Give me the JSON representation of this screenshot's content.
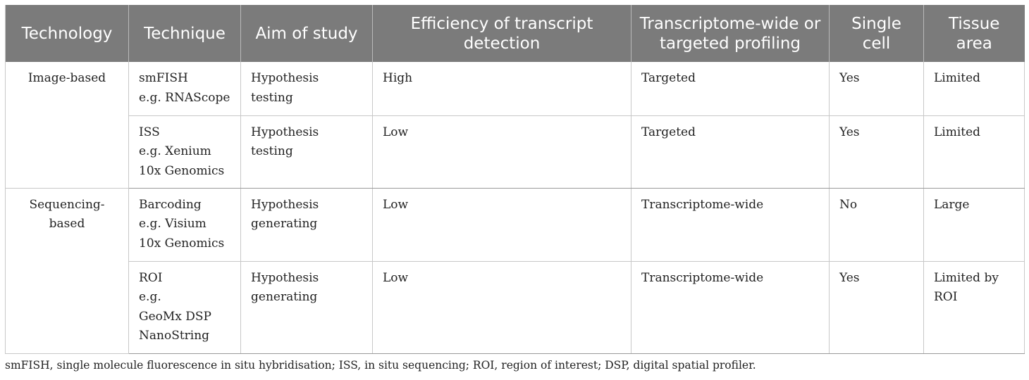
{
  "table": {
    "headers": [
      "Technology",
      "Technique",
      "Aim of study",
      "Efficiency of transcript detection",
      "Transcriptome-wide or targeted profiling",
      "Single cell",
      "Tissue area"
    ],
    "groups": [
      {
        "technology": [
          "Image-based"
        ],
        "rows": [
          {
            "technique": [
              "smFISH",
              "e.g. RNAScope"
            ],
            "aim": [
              "Hypothesis testing"
            ],
            "efficiency": "High",
            "profiling": "Targeted",
            "single_cell": "Yes",
            "tissue_area": [
              "Limited"
            ]
          },
          {
            "technique": [
              "ISS",
              "e.g. Xenium",
              "10x Genomics"
            ],
            "aim": [
              "Hypothesis testing"
            ],
            "efficiency": "Low",
            "profiling": "Targeted",
            "single_cell": "Yes",
            "tissue_area": [
              "Limited"
            ]
          }
        ]
      },
      {
        "technology": [
          "Sequencing-",
          "based"
        ],
        "rows": [
          {
            "technique": [
              "Barcoding",
              "e.g. Visium",
              "10x Genomics"
            ],
            "aim": [
              "Hypothesis",
              "generating"
            ],
            "efficiency": "Low",
            "profiling": "Transcriptome-wide",
            "single_cell": "No",
            "tissue_area": [
              "Large"
            ]
          },
          {
            "technique": [
              "ROI",
              "e.g.",
              "GeoMx DSP",
              "NanoString"
            ],
            "aim": [
              "Hypothesis",
              "generating"
            ],
            "efficiency": "Low",
            "profiling": "Transcriptome-wide",
            "single_cell": "Yes",
            "tissue_area": [
              "Limited by",
              "ROI"
            ]
          }
        ]
      }
    ]
  },
  "footnote": "smFISH, single molecule fluorescence in situ hybridisation; ISS, in situ sequencing; ROI, region of interest; DSP, digital spatial profiler."
}
